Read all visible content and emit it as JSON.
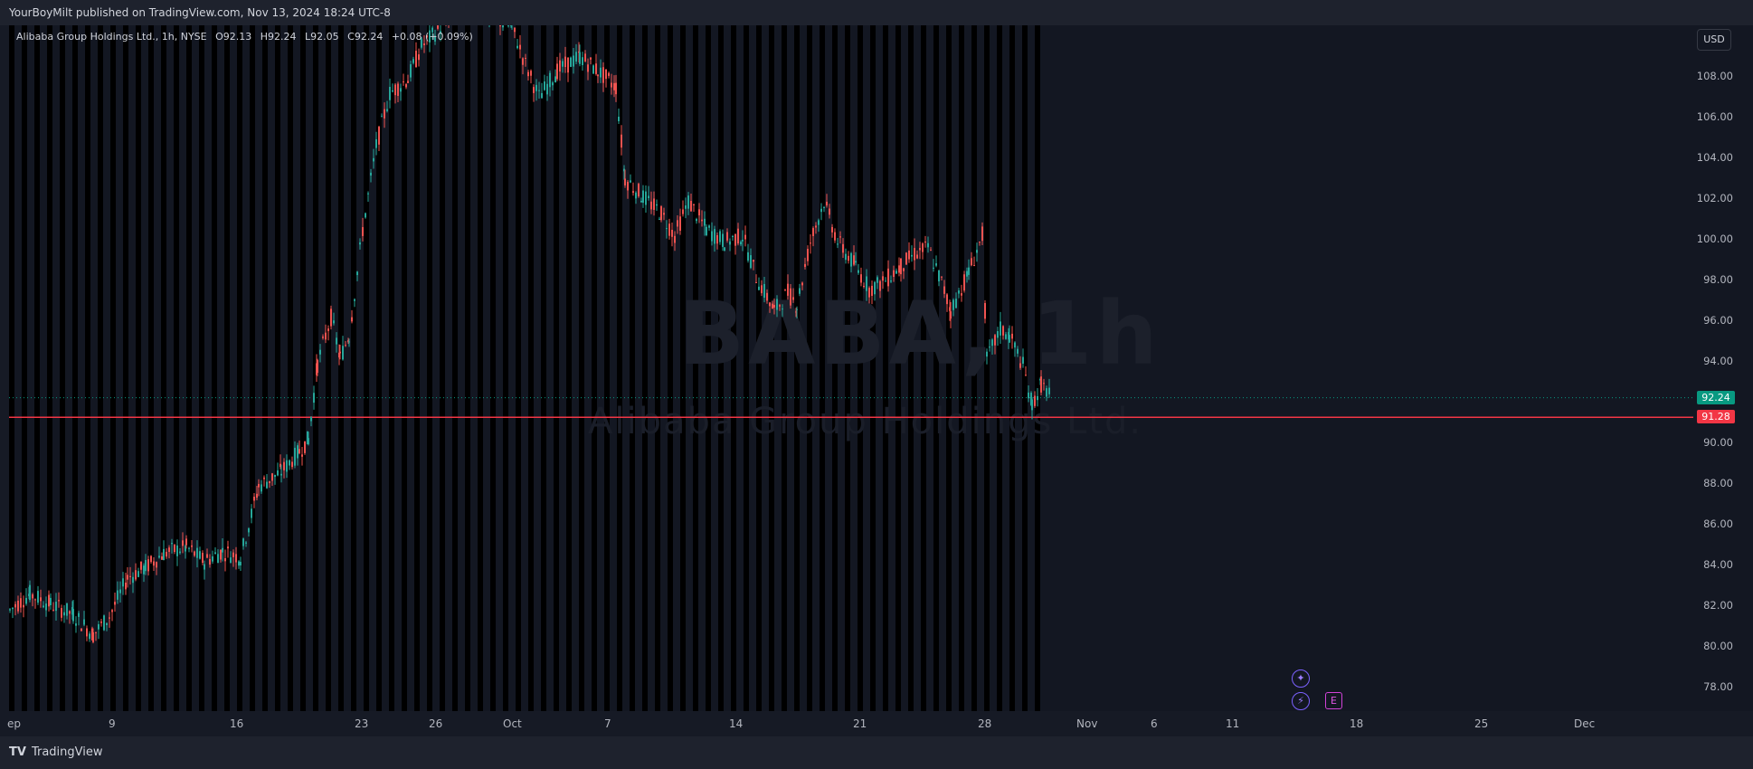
{
  "header": {
    "published": "YourBoyMilt published on TradingView.com, Nov 13, 2024 18:24 UTC-8"
  },
  "legend": {
    "name": "Alibaba Group Holdings Ltd., 1h, NYSE",
    "open": "O92.13",
    "high": "H92.24",
    "low": "L92.05",
    "close": "C92.24",
    "change": "+0.08 (+0.09%)"
  },
  "watermark": {
    "symbol": "BABA, 1h",
    "name": "Alibaba Group Holdings Ltd."
  },
  "price_axis": {
    "currency": "USD",
    "ticks": [
      "108.00",
      "106.00",
      "104.00",
      "102.00",
      "100.00",
      "98.00",
      "96.00",
      "94.00",
      "90.00",
      "88.00",
      "86.00",
      "84.00",
      "82.00",
      "80.00",
      "78.00"
    ],
    "last_price": "92.24",
    "line_price": "91.28"
  },
  "time_axis": {
    "ticks": [
      "ep",
      "9",
      "16",
      "23",
      "26",
      "Oct",
      "7",
      "14",
      "21",
      "28",
      "Nov",
      "6",
      "11",
      "18",
      "25",
      "Dec"
    ]
  },
  "events": {
    "e_label": "E",
    "icons": [
      "star-event-icon",
      "lightning-event-icon",
      "earnings-icon"
    ]
  },
  "footer": {
    "brand": "TradingView",
    "logo_mark": "TV"
  },
  "colors": {
    "up": "#26a69a",
    "down": "#ef5350",
    "line": "#f23645",
    "last": "#089981",
    "bg": "#131722"
  },
  "chart_data": {
    "type": "candlestick",
    "symbol": "BABA",
    "interval": "1h",
    "exchange": "NYSE",
    "ylim": [
      77,
      111
    ],
    "horizontal_line": 91.28,
    "last_price": 92.24,
    "points": [
      [
        0,
        81.8
      ],
      [
        22,
        82.6
      ],
      [
        45,
        82.1
      ],
      [
        70,
        81.6
      ],
      [
        92,
        80.6
      ],
      [
        110,
        81.5
      ],
      [
        130,
        83.4
      ],
      [
        150,
        83.9
      ],
      [
        170,
        84.6
      ],
      [
        195,
        84.9
      ],
      [
        215,
        84.2
      ],
      [
        235,
        84.7
      ],
      [
        255,
        84.4
      ],
      [
        275,
        87.9
      ],
      [
        300,
        88.6
      ],
      [
        320,
        89.6
      ],
      [
        330,
        90.2
      ],
      [
        340,
        93.9
      ],
      [
        355,
        96.2
      ],
      [
        365,
        94.2
      ],
      [
        375,
        95.3
      ],
      [
        390,
        100.5
      ],
      [
        405,
        104.6
      ],
      [
        420,
        107.2
      ],
      [
        440,
        107.9
      ],
      [
        455,
        109.5
      ],
      [
        500,
        111.5
      ],
      [
        555,
        110.5
      ],
      [
        570,
        108.6
      ],
      [
        585,
        107.0
      ],
      [
        605,
        108.3
      ],
      [
        630,
        109.0
      ],
      [
        650,
        108.3
      ],
      [
        670,
        107.5
      ],
      [
        680,
        103.0
      ],
      [
        700,
        102.1
      ],
      [
        720,
        101.3
      ],
      [
        735,
        100.2
      ],
      [
        750,
        101.9
      ],
      [
        770,
        100.5
      ],
      [
        790,
        99.9
      ],
      [
        810,
        100.2
      ],
      [
        825,
        98.2
      ],
      [
        845,
        96.5
      ],
      [
        860,
        97.4
      ],
      [
        870,
        96.8
      ],
      [
        885,
        99.9
      ],
      [
        900,
        101.9
      ],
      [
        915,
        99.9
      ],
      [
        935,
        98.7
      ],
      [
        950,
        97.6
      ],
      [
        965,
        97.9
      ],
      [
        985,
        98.7
      ],
      [
        1000,
        99.3
      ],
      [
        1015,
        99.6
      ],
      [
        1030,
        97.9
      ],
      [
        1040,
        96.5
      ],
      [
        1060,
        98.4
      ],
      [
        1075,
        100.2
      ],
      [
        1080,
        94.1
      ],
      [
        1095,
        95.6
      ],
      [
        1105,
        95.3
      ],
      [
        1120,
        93.8
      ],
      [
        1130,
        91.9
      ],
      [
        1140,
        92.9
      ],
      [
        1152,
        92.24
      ]
    ]
  }
}
